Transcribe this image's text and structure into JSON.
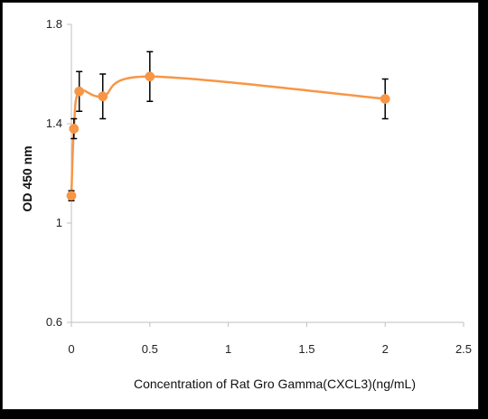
{
  "chart_data": {
    "type": "line",
    "title": "",
    "xlabel": "Concentration of Rat Gro Gamma(CXCL3)(ng/mL)",
    "ylabel": "OD 450 nm",
    "xlim": [
      0,
      2.5
    ],
    "ylim": [
      0.6,
      1.8
    ],
    "x_ticks": [
      "0",
      "0.5",
      "1",
      "1.5",
      "2",
      "2.5"
    ],
    "y_ticks": [
      "0.6",
      "1",
      "1.4",
      "1.8"
    ],
    "grid": false,
    "legend": "none",
    "smooth": true,
    "series": [
      {
        "color": "#F79646",
        "x": [
          0,
          0.016,
          0.05,
          0.2,
          0.5,
          2
        ],
        "y": [
          1.11,
          1.38,
          1.53,
          1.51,
          1.59,
          1.5
        ],
        "error": [
          0.02,
          0.04,
          0.08,
          0.09,
          0.1,
          0.08
        ]
      }
    ]
  }
}
